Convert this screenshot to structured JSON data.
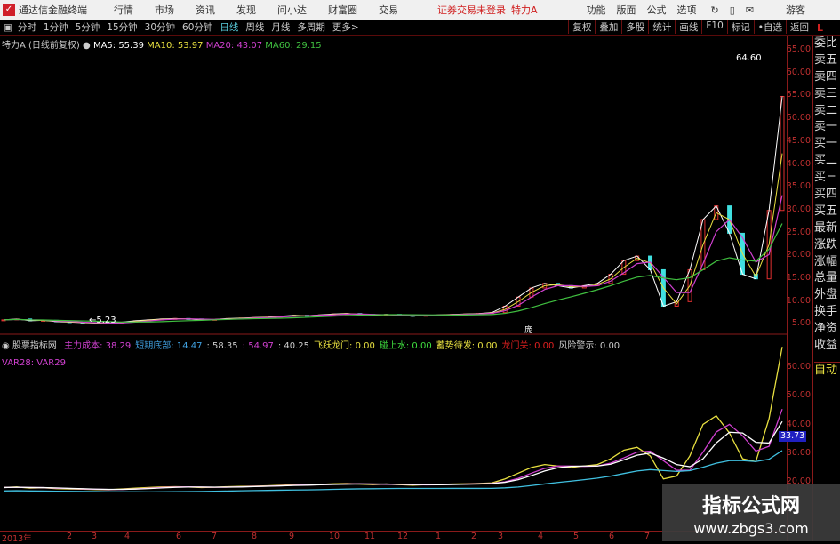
{
  "app": {
    "title": "通达信金融终端",
    "menus": [
      "行情",
      "市场",
      "资讯",
      "发现",
      "问小达",
      "财富圈",
      "交易"
    ],
    "login_status": "证券交易未登录",
    "stock": "特力A",
    "right_menus": [
      "功能",
      "版面",
      "公式",
      "选项"
    ],
    "user": "游客"
  },
  "toolbar": {
    "periods": [
      "分时",
      "1分钟",
      "5分钟",
      "15分钟",
      "30分钟",
      "60分钟",
      "日线",
      "周线",
      "月线",
      "多周期",
      "更多>"
    ],
    "active": "日线",
    "buttons": [
      "复权",
      "叠加",
      "多股",
      "统计",
      "画线",
      "F10",
      "标记",
      "•自选",
      "返回"
    ]
  },
  "info": {
    "name": "特力A (日线前复权)",
    "ma5": "MA5: 55.39",
    "ma10": "MA10: 53.97",
    "ma20": "MA20: 43.07",
    "ma60": "MA60: 29.15"
  },
  "colors": {
    "ma5": "#ffffff",
    "ma10": "#e8e040",
    "ma20": "#d040d0",
    "ma60": "#40c040"
  },
  "price_axis": [
    "65.00",
    "60.00",
    "55.00",
    "50.00",
    "45.00",
    "40.00",
    "35.00",
    "30.00",
    "25.00",
    "20.00",
    "15.00",
    "10.00",
    "5.00"
  ],
  "annotations": {
    "high": "64.60",
    "low": "5.23",
    "marker": "庞"
  },
  "right_panel": [
    "委比",
    "卖五",
    "卖四",
    "卖三",
    "卖二",
    "卖一",
    "买一",
    "买二",
    "买三",
    "买四",
    "买五",
    "最新",
    "涨跌",
    "涨幅",
    "总量",
    "外盘",
    "换手",
    "净资",
    "收益",
    "自动"
  ],
  "indicator": {
    "name": "股票指标网",
    "items": [
      {
        "t": "主力成本: 38.29",
        "c": "#d040d0"
      },
      {
        "t": "短期底部: 14.47",
        "c": "#40a0e0"
      },
      {
        "t": ": 58.35",
        "c": "#ccc"
      },
      {
        "t": ": 54.97",
        "c": "#d040d0"
      },
      {
        "t": ": 40.25",
        "c": "#ccc"
      },
      {
        "t": "飞跃龙门: 0.00",
        "c": "#e8e040"
      },
      {
        "t": "碰上水: 0.00",
        "c": "#40e040"
      },
      {
        "t": "蓄势待发: 0.00",
        "c": "#e8e040"
      },
      {
        "t": "龙门关: 0.00",
        "c": "#e02020"
      },
      {
        "t": "风险警示: 0.00",
        "c": "#ccc"
      }
    ],
    "vars": "VAR28: VAR29",
    "current": "33.73"
  },
  "sub_axis": [
    "60.00",
    "50.00",
    "40.00",
    "30.00",
    "20.00"
  ],
  "dates": [
    "2013年",
    "2",
    "3",
    "4",
    "6",
    "7",
    "8",
    "9",
    "10",
    "11",
    "12",
    "1",
    "2",
    "3",
    "4",
    "5",
    "6",
    "7"
  ],
  "watermark": {
    "name": "指标公式网",
    "url": "www.zbgs3.com"
  },
  "chart_data": {
    "type": "line",
    "ylim": [
      5,
      65
    ],
    "close": [
      6,
      6.2,
      5.8,
      5.9,
      5.6,
      5.5,
      5.4,
      5.3,
      5.23,
      5.5,
      5.8,
      6,
      6.2,
      6.3,
      6.2,
      6,
      6.1,
      6.3,
      6.4,
      6.5,
      6.6,
      6.8,
      7,
      6.9,
      7.1,
      7.3,
      7.4,
      7.2,
      7,
      7.2,
      7,
      6.8,
      7,
      7.1,
      7.2,
      7.3,
      7.4,
      7.6,
      9,
      11,
      13,
      14,
      13.5,
      13,
      13.5,
      14,
      16,
      19,
      20,
      17,
      9,
      10,
      17,
      28,
      31,
      25,
      16,
      15,
      30,
      55
    ]
  }
}
